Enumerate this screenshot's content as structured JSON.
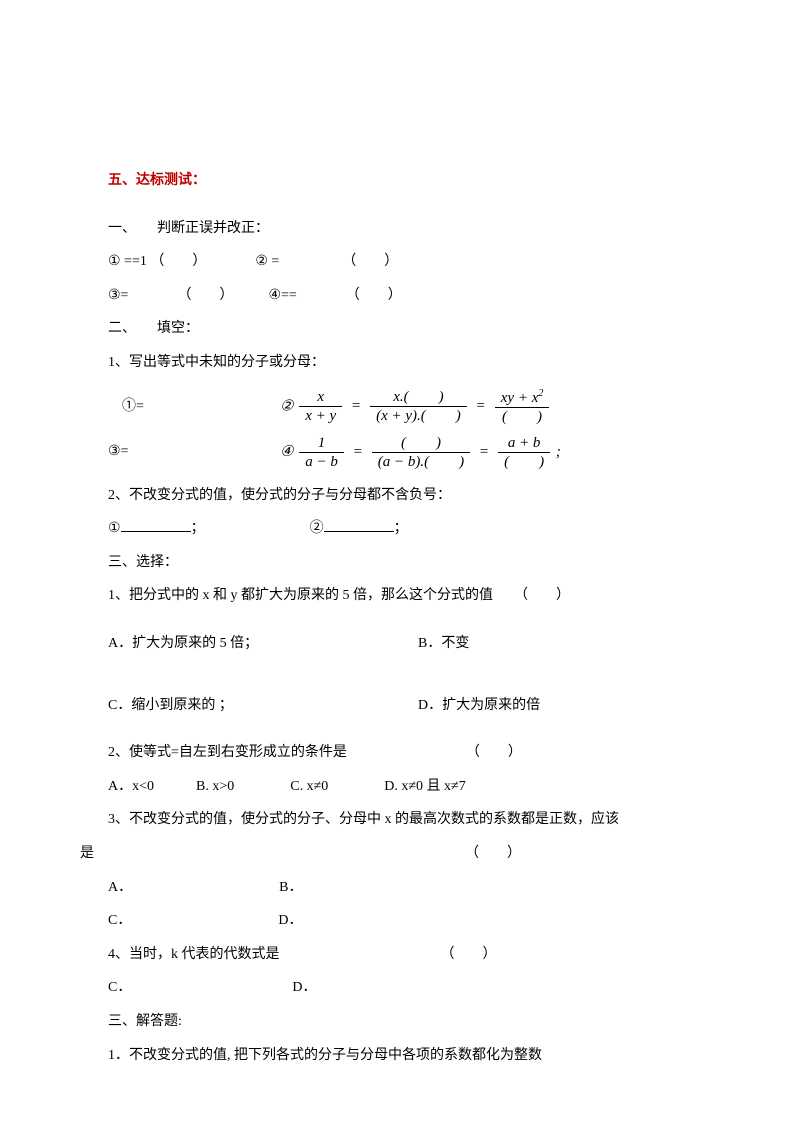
{
  "heading": "五、达标测试：",
  "sec1_title": "一、　　判断正误并改正：",
  "sec1_item1": "① ==1 （　　）　　　　② =　　　　　（　　）",
  "sec1_item2": "③=　　　　（　　）　　　④==　　　　（　　）",
  "sec2_title": "二、　　填空：",
  "sec2_q1": "1、写出等式中未知的分子或分母：",
  "sec2_q1_left1": "　①=",
  "sec2_q1_left2": "③=",
  "frac1": {
    "label": "②",
    "n1": "x",
    "d1": "x + y",
    "n2": "x.(　　)",
    "d2": "(x + y).(　　)",
    "n3": "xy + x",
    "sup": "2",
    "d3": "(　　)"
  },
  "frac2": {
    "label": "④",
    "n1": "1",
    "d1": "a − b",
    "n2": "(　　)",
    "d2": "(a − b).(　　)",
    "n3": "a + b",
    "d3": "(　　)",
    "tail": " ;"
  },
  "sec2_q2": "2、不改变分式的值，使分式的分子与分母都不含负号：",
  "sec2_q2_items_a": "①",
  "sec2_q2_items_b": "；",
  "sec2_q2_items_c": "②",
  "sec2_q2_items_d": "；",
  "sec3_title": "三、选择：",
  "sec3_q1": "1、把分式中的 x 和 y 都扩大为原来的 5 倍，那么这个分式的值　　（　　）",
  "sec3_q1_a": "A．扩大为原来的 5 倍；",
  "sec3_q1_b": "B．不变",
  "sec3_q1_c": "C．缩小到原来的 ；",
  "sec3_q1_d": "D．扩大为原来的倍",
  "sec3_q2": "2、使等式=自左到右变形成立的条件是　　　　　　　　　（　　）",
  "sec3_q2_opts": "A．x<0　　　B. x>0　　　　C. x≠0　　　　D. x≠0 且 x≠7",
  "sec3_q3a": "3、不改变分式的值，使分式的分子、分母中 x 的最高次数式的系数都是正数，应该",
  "sec3_q3b": "是　　　　　　　　　　　　　　　　　　　　　　　　　　　（　　）",
  "sec3_q3_ab": "A．　　　　　　　　　　　B．",
  "sec3_q3_cd": "C．　　　　　　　　　　　D．",
  "sec3_q4": "4、当时，k 代表的代数式是　　　　　　　　　　　　（　　）",
  "sec3_q4_cd": "C．　　　　　　　　　　　　D．",
  "sec4_title": "三、解答题:",
  "sec4_q1": "1．不改变分式的值, 把下列各式的分子与分母中各项的系数都化为整数"
}
